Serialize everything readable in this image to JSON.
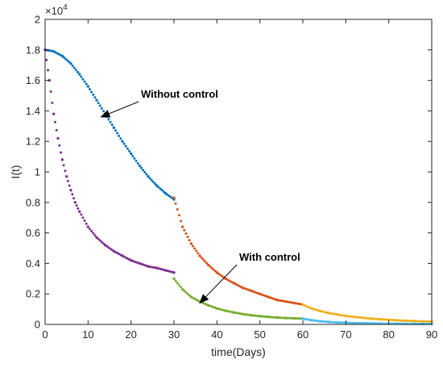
{
  "chart_data": {
    "type": "scatter",
    "xlabel": "time(Days)",
    "ylabel": "I(t)",
    "xlim": [
      0,
      90
    ],
    "ylim": [
      0,
      2
    ],
    "y_exponent_label": "×10",
    "y_exponent_power": "4",
    "xticks": [
      "0",
      "10",
      "20",
      "30",
      "40",
      "50",
      "60",
      "70",
      "80",
      "90"
    ],
    "yticks": [
      "0",
      "0.2",
      "0.4",
      "0.6",
      "0.8",
      "1",
      "1.2",
      "1.4",
      "1.6",
      "1.8",
      "2"
    ],
    "grid": false,
    "series": [
      {
        "color": "#0072BD",
        "x": [
          0,
          2,
          4,
          6,
          8,
          10,
          12,
          14,
          16,
          18,
          20,
          22,
          24,
          26,
          28,
          30
        ],
        "y": [
          1.8,
          1.79,
          1.76,
          1.71,
          1.64,
          1.56,
          1.47,
          1.38,
          1.29,
          1.2,
          1.12,
          1.04,
          0.97,
          0.91,
          0.86,
          0.82
        ]
      },
      {
        "color": "#D95319",
        "x": [
          30,
          32,
          34,
          36,
          38,
          40,
          42,
          44,
          46,
          48,
          50,
          52,
          54,
          56,
          58,
          60
        ],
        "y": [
          0.83,
          0.64,
          0.53,
          0.45,
          0.39,
          0.34,
          0.3,
          0.27,
          0.24,
          0.22,
          0.2,
          0.18,
          0.16,
          0.15,
          0.14,
          0.13
        ]
      },
      {
        "color": "#EDB120",
        "x": [
          60,
          62,
          64,
          66,
          68,
          70,
          72,
          74,
          76,
          78,
          80,
          82,
          84,
          86,
          88,
          90
        ],
        "y": [
          0.13,
          0.105,
          0.088,
          0.075,
          0.065,
          0.056,
          0.049,
          0.043,
          0.038,
          0.034,
          0.03,
          0.027,
          0.024,
          0.022,
          0.02,
          0.018
        ]
      },
      {
        "color": "#7E2F8E",
        "x": [
          0,
          1,
          2,
          3,
          4,
          5,
          6,
          7,
          8,
          10,
          12,
          14,
          16,
          18,
          20,
          22,
          24,
          26,
          28,
          30
        ],
        "y": [
          1.8,
          1.6,
          1.38,
          1.22,
          1.08,
          0.97,
          0.88,
          0.8,
          0.74,
          0.64,
          0.57,
          0.52,
          0.48,
          0.45,
          0.42,
          0.4,
          0.38,
          0.37,
          0.355,
          0.34
        ]
      },
      {
        "color": "#77AC30",
        "x": [
          30,
          32,
          34,
          36,
          38,
          40,
          42,
          44,
          46,
          48,
          50,
          52,
          54,
          56,
          58,
          60
        ],
        "y": [
          0.3,
          0.23,
          0.18,
          0.15,
          0.125,
          0.105,
          0.09,
          0.078,
          0.068,
          0.06,
          0.054,
          0.049,
          0.045,
          0.042,
          0.04,
          0.038
        ]
      },
      {
        "color": "#4DBEEE",
        "x": [
          60,
          62,
          64,
          66,
          68,
          70,
          72,
          74,
          76,
          78,
          80,
          82,
          84,
          86,
          88,
          90
        ],
        "y": [
          0.038,
          0.028,
          0.021,
          0.016,
          0.013,
          0.011,
          0.009,
          0.008,
          0.007,
          0.006,
          0.005,
          0.005,
          0.004,
          0.004,
          0.003,
          0.003
        ]
      }
    ],
    "annotations": [
      {
        "text": "Without control",
        "arrow_to": [
          13,
          1.36
        ]
      },
      {
        "text": "With control",
        "arrow_to": [
          36,
          0.14
        ]
      }
    ]
  }
}
